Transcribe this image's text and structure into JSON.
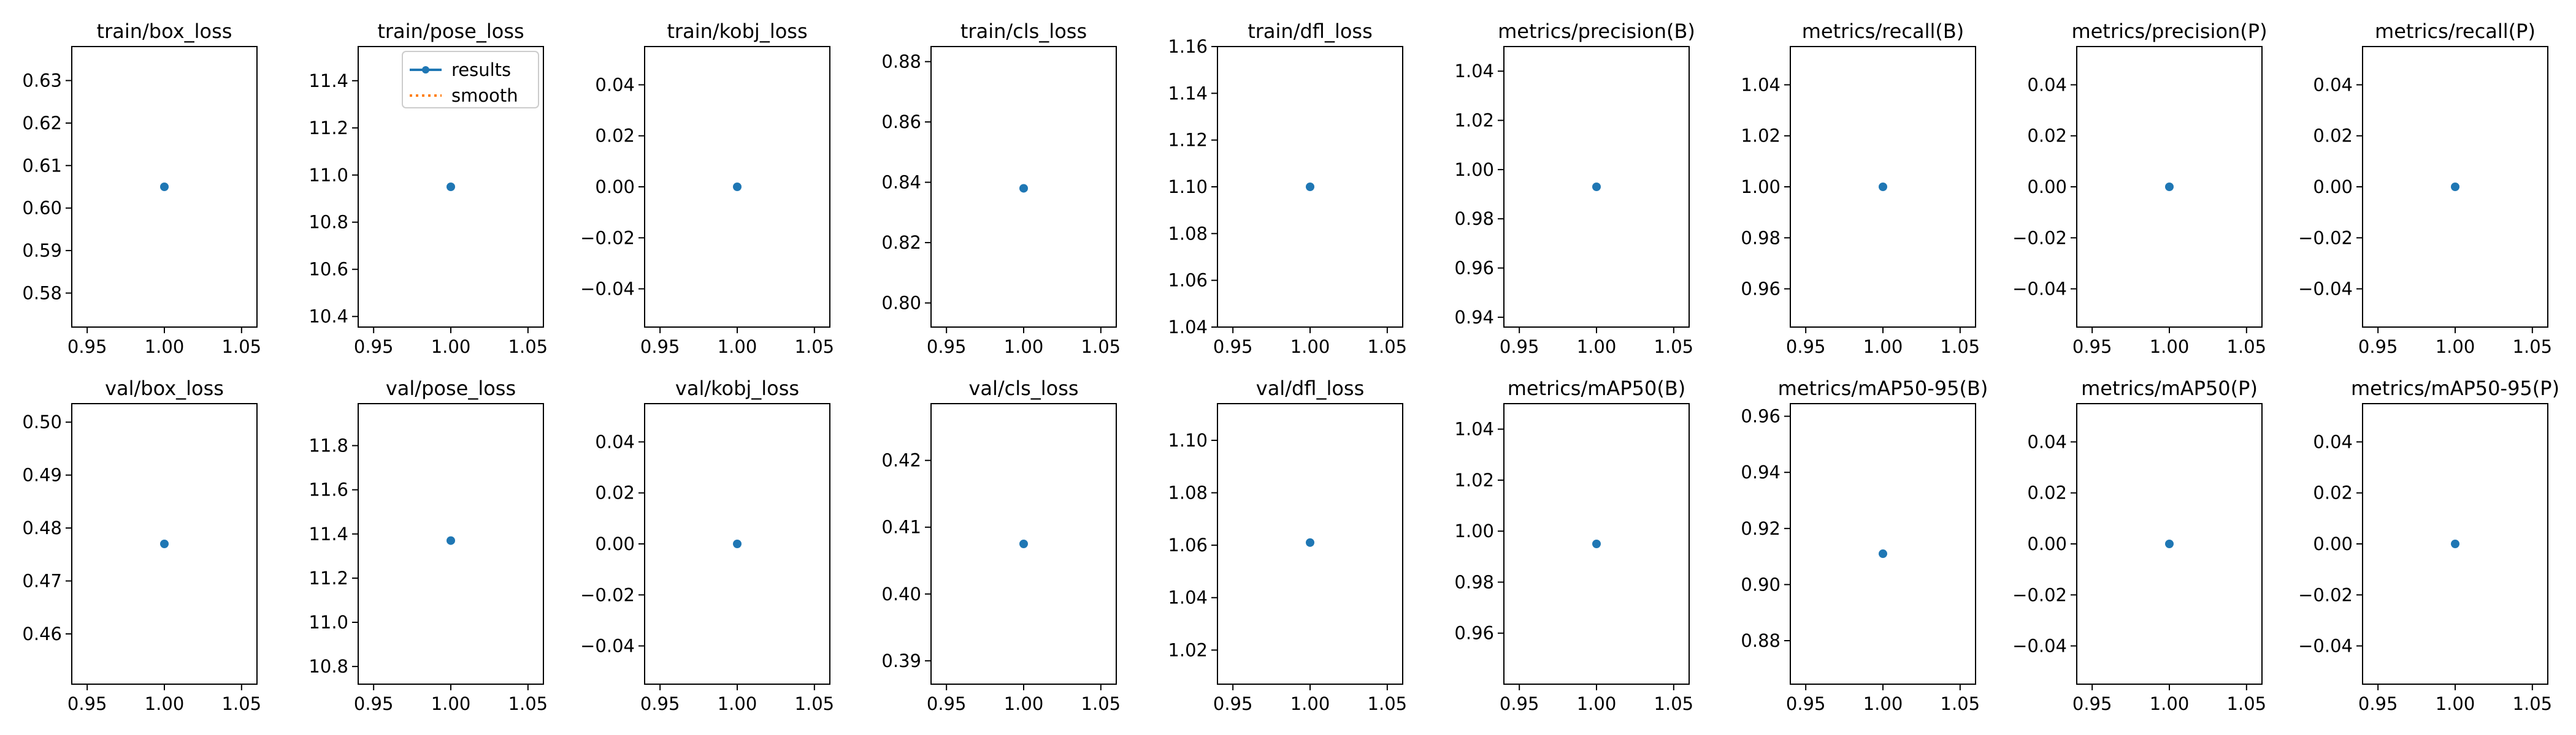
{
  "legend": {
    "labels": [
      "results",
      "smooth"
    ],
    "colors": [
      "#1f77b4",
      "#ff7f0e"
    ],
    "location": "upper right of second panel"
  },
  "point_color": "#1f77b4",
  "chart_data": [
    {
      "type": "scatter",
      "title": "train/box_loss",
      "x": [
        1
      ],
      "y": [
        0.605
      ],
      "xlim": [
        0.94,
        1.06
      ],
      "xticks": [
        "0.95",
        "1.00",
        "1.05"
      ],
      "ylim": [
        0.572,
        0.638
      ],
      "yticks": [
        "0.58",
        "0.59",
        "0.60",
        "0.61",
        "0.62",
        "0.63"
      ],
      "ytick_values": [
        0.58,
        0.59,
        0.6,
        0.61,
        0.62,
        0.63
      ]
    },
    {
      "type": "scatter",
      "title": "train/pose_loss",
      "x": [
        1
      ],
      "y": [
        10.95
      ],
      "xlim": [
        0.94,
        1.06
      ],
      "xticks": [
        "0.95",
        "1.00",
        "1.05"
      ],
      "ylim": [
        10.355,
        11.545
      ],
      "yticks": [
        "10.4",
        "10.6",
        "10.8",
        "11.0",
        "11.2",
        "11.4"
      ],
      "ytick_values": [
        10.4,
        10.6,
        10.8,
        11.0,
        11.2,
        11.4
      ],
      "legend": true
    },
    {
      "type": "scatter",
      "title": "train/kobj_loss",
      "x": [
        1
      ],
      "y": [
        0.0
      ],
      "xlim": [
        0.94,
        1.06
      ],
      "xticks": [
        "0.95",
        "1.00",
        "1.05"
      ],
      "ylim": [
        -0.055,
        0.055
      ],
      "yticks": [
        "−0.04",
        "−0.02",
        "0.00",
        "0.02",
        "0.04"
      ],
      "ytick_values": [
        -0.04,
        -0.02,
        0.0,
        0.02,
        0.04
      ]
    },
    {
      "type": "scatter",
      "title": "train/cls_loss",
      "x": [
        1
      ],
      "y": [
        0.838
      ],
      "xlim": [
        0.94,
        1.06
      ],
      "xticks": [
        "0.95",
        "1.00",
        "1.05"
      ],
      "ylim": [
        0.792,
        0.885
      ],
      "yticks": [
        "0.80",
        "0.82",
        "0.84",
        "0.86",
        "0.88"
      ],
      "ytick_values": [
        0.8,
        0.82,
        0.84,
        0.86,
        0.88
      ]
    },
    {
      "type": "scatter",
      "title": "train/dfl_loss",
      "x": [
        1
      ],
      "y": [
        1.1
      ],
      "xlim": [
        0.94,
        1.06
      ],
      "xticks": [
        "0.95",
        "1.00",
        "1.05"
      ],
      "ylim": [
        1.04,
        1.16
      ],
      "yticks": [
        "1.04",
        "1.06",
        "1.08",
        "1.10",
        "1.12",
        "1.14",
        "1.16"
      ],
      "ytick_values": [
        1.04,
        1.06,
        1.08,
        1.1,
        1.12,
        1.14,
        1.16
      ]
    },
    {
      "type": "scatter",
      "title": "metrics/precision(B)",
      "x": [
        1
      ],
      "y": [
        0.993
      ],
      "xlim": [
        0.94,
        1.06
      ],
      "xticks": [
        "0.95",
        "1.00",
        "1.05"
      ],
      "ylim": [
        0.936,
        1.05
      ],
      "yticks": [
        "0.94",
        "0.96",
        "0.98",
        "1.00",
        "1.02",
        "1.04"
      ],
      "ytick_values": [
        0.94,
        0.96,
        0.98,
        1.0,
        1.02,
        1.04
      ]
    },
    {
      "type": "scatter",
      "title": "metrics/recall(B)",
      "x": [
        1
      ],
      "y": [
        1.0
      ],
      "xlim": [
        0.94,
        1.06
      ],
      "xticks": [
        "0.95",
        "1.00",
        "1.05"
      ],
      "ylim": [
        0.945,
        1.055
      ],
      "yticks": [
        "0.96",
        "0.98",
        "1.00",
        "1.02",
        "1.04"
      ],
      "ytick_values": [
        0.96,
        0.98,
        1.0,
        1.02,
        1.04
      ]
    },
    {
      "type": "scatter",
      "title": "metrics/precision(P)",
      "x": [
        1
      ],
      "y": [
        0.0
      ],
      "xlim": [
        0.94,
        1.06
      ],
      "xticks": [
        "0.95",
        "1.00",
        "1.05"
      ],
      "ylim": [
        -0.055,
        0.055
      ],
      "yticks": [
        "−0.04",
        "−0.02",
        "0.00",
        "0.02",
        "0.04"
      ],
      "ytick_values": [
        -0.04,
        -0.02,
        0.0,
        0.02,
        0.04
      ]
    },
    {
      "type": "scatter",
      "title": "metrics/recall(P)",
      "x": [
        1
      ],
      "y": [
        0.0
      ],
      "xlim": [
        0.94,
        1.06
      ],
      "xticks": [
        "0.95",
        "1.00",
        "1.05"
      ],
      "ylim": [
        -0.055,
        0.055
      ],
      "yticks": [
        "−0.04",
        "−0.02",
        "0.00",
        "0.02",
        "0.04"
      ],
      "ytick_values": [
        -0.04,
        -0.02,
        0.0,
        0.02,
        0.04
      ]
    },
    {
      "type": "scatter",
      "title": "val/box_loss",
      "x": [
        1
      ],
      "y": [
        0.477
      ],
      "xlim": [
        0.94,
        1.06
      ],
      "xticks": [
        "0.95",
        "1.00",
        "1.05"
      ],
      "ylim": [
        0.4505,
        0.5035
      ],
      "yticks": [
        "0.46",
        "0.47",
        "0.48",
        "0.49",
        "0.50"
      ],
      "ytick_values": [
        0.46,
        0.47,
        0.48,
        0.49,
        0.5
      ]
    },
    {
      "type": "scatter",
      "title": "val/pose_loss",
      "x": [
        1
      ],
      "y": [
        11.37
      ],
      "xlim": [
        0.94,
        1.06
      ],
      "xticks": [
        "0.95",
        "1.00",
        "1.05"
      ],
      "ylim": [
        10.72,
        11.99
      ],
      "yticks": [
        "10.8",
        "11.0",
        "11.2",
        "11.4",
        "11.6",
        "11.8"
      ],
      "ytick_values": [
        10.8,
        11.0,
        11.2,
        11.4,
        11.6,
        11.8
      ]
    },
    {
      "type": "scatter",
      "title": "val/kobj_loss",
      "x": [
        1
      ],
      "y": [
        0.0
      ],
      "xlim": [
        0.94,
        1.06
      ],
      "xticks": [
        "0.95",
        "1.00",
        "1.05"
      ],
      "ylim": [
        -0.055,
        0.055
      ],
      "yticks": [
        "−0.04",
        "−0.02",
        "0.00",
        "0.02",
        "0.04"
      ],
      "ytick_values": [
        -0.04,
        -0.02,
        0.0,
        0.02,
        0.04
      ]
    },
    {
      "type": "scatter",
      "title": "val/cls_loss",
      "x": [
        1
      ],
      "y": [
        0.4075
      ],
      "xlim": [
        0.94,
        1.06
      ],
      "xticks": [
        "0.95",
        "1.00",
        "1.05"
      ],
      "ylim": [
        0.3865,
        0.4285
      ],
      "yticks": [
        "0.39",
        "0.40",
        "0.41",
        "0.42"
      ],
      "ytick_values": [
        0.39,
        0.4,
        0.41,
        0.42
      ]
    },
    {
      "type": "scatter",
      "title": "val/dfl_loss",
      "x": [
        1
      ],
      "y": [
        1.061
      ],
      "xlim": [
        0.94,
        1.06
      ],
      "xticks": [
        "0.95",
        "1.00",
        "1.05"
      ],
      "ylim": [
        1.007,
        1.114
      ],
      "yticks": [
        "1.02",
        "1.04",
        "1.06",
        "1.08",
        "1.10"
      ],
      "ytick_values": [
        1.02,
        1.04,
        1.06,
        1.08,
        1.1
      ]
    },
    {
      "type": "scatter",
      "title": "metrics/mAP50(B)",
      "x": [
        1
      ],
      "y": [
        0.995
      ],
      "xlim": [
        0.94,
        1.06
      ],
      "xticks": [
        "0.95",
        "1.00",
        "1.05"
      ],
      "ylim": [
        0.94,
        1.05
      ],
      "yticks": [
        "0.96",
        "0.98",
        "1.00",
        "1.02",
        "1.04"
      ],
      "ytick_values": [
        0.96,
        0.98,
        1.0,
        1.02,
        1.04
      ]
    },
    {
      "type": "scatter",
      "title": "metrics/mAP50-95(B)",
      "x": [
        1
      ],
      "y": [
        0.911
      ],
      "xlim": [
        0.94,
        1.06
      ],
      "xticks": [
        "0.95",
        "1.00",
        "1.05"
      ],
      "ylim": [
        0.8645,
        0.9645
      ],
      "yticks": [
        "0.88",
        "0.90",
        "0.92",
        "0.94",
        "0.96"
      ],
      "ytick_values": [
        0.88,
        0.9,
        0.92,
        0.94,
        0.96
      ]
    },
    {
      "type": "scatter",
      "title": "metrics/mAP50(P)",
      "x": [
        1
      ],
      "y": [
        0.0
      ],
      "xlim": [
        0.94,
        1.06
      ],
      "xticks": [
        "0.95",
        "1.00",
        "1.05"
      ],
      "ylim": [
        -0.055,
        0.055
      ],
      "yticks": [
        "−0.04",
        "−0.02",
        "0.00",
        "0.02",
        "0.04"
      ],
      "ytick_values": [
        -0.04,
        -0.02,
        0.0,
        0.02,
        0.04
      ]
    },
    {
      "type": "scatter",
      "title": "metrics/mAP50-95(P)",
      "x": [
        1
      ],
      "y": [
        0.0
      ],
      "xlim": [
        0.94,
        1.06
      ],
      "xticks": [
        "0.95",
        "1.00",
        "1.05"
      ],
      "ylim": [
        -0.055,
        0.055
      ],
      "yticks": [
        "−0.04",
        "−0.02",
        "0.00",
        "0.02",
        "0.04"
      ],
      "ytick_values": [
        -0.04,
        -0.02,
        0.0,
        0.02,
        0.04
      ]
    }
  ]
}
